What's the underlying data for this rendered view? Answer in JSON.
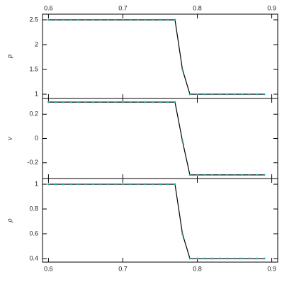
{
  "chart_data": [
    {
      "type": "line",
      "ylabel": "p",
      "xlim": [
        0.592,
        0.908
      ],
      "xticks": [
        0.6,
        0.7,
        0.8,
        0.9
      ],
      "xtick_labels_side": "top",
      "ylim": [
        0.914,
        2.614
      ],
      "yticks": [
        1,
        1.5,
        2,
        2.5
      ],
      "line_color": "#000000",
      "marker_color": "#20b2aa",
      "x": [
        0.6,
        0.61,
        0.62,
        0.63,
        0.64,
        0.65,
        0.66,
        0.67,
        0.68,
        0.69,
        0.7,
        0.71,
        0.72,
        0.73,
        0.74,
        0.75,
        0.76,
        0.77,
        0.78,
        0.79,
        0.8,
        0.81,
        0.82,
        0.83,
        0.84,
        0.85,
        0.86,
        0.87,
        0.88,
        0.89
      ],
      "values": [
        2.5,
        2.5,
        2.5,
        2.5,
        2.5,
        2.5,
        2.5,
        2.5,
        2.5,
        2.5,
        2.5,
        2.5,
        2.5,
        2.5,
        2.5,
        2.5,
        2.5,
        2.5,
        1.5,
        1,
        1,
        1,
        1,
        1,
        1,
        1,
        1,
        1,
        1,
        1
      ]
    },
    {
      "type": "line",
      "ylabel": "v",
      "xlim": [
        0.592,
        0.908
      ],
      "xticks": [
        0.6,
        0.7,
        0.8,
        0.9
      ],
      "xtick_labels_side": "none",
      "ylim": [
        -0.33,
        0.33
      ],
      "yticks": [
        -0.2,
        0,
        0.2
      ],
      "line_color": "#000000",
      "marker_color": "#20b2aa",
      "x": [
        0.6,
        0.61,
        0.62,
        0.63,
        0.64,
        0.65,
        0.66,
        0.67,
        0.68,
        0.69,
        0.7,
        0.71,
        0.72,
        0.73,
        0.74,
        0.75,
        0.76,
        0.77,
        0.78,
        0.79,
        0.8,
        0.81,
        0.82,
        0.83,
        0.84,
        0.85,
        0.86,
        0.87,
        0.88,
        0.89
      ],
      "values": [
        0.3,
        0.3,
        0.3,
        0.3,
        0.3,
        0.3,
        0.3,
        0.3,
        0.3,
        0.3,
        0.3,
        0.3,
        0.3,
        0.3,
        0.3,
        0.3,
        0.3,
        0.3,
        -0.02,
        -0.3,
        -0.3,
        -0.3,
        -0.3,
        -0.3,
        -0.3,
        -0.3,
        -0.3,
        -0.3,
        -0.3,
        -0.3
      ]
    },
    {
      "type": "line",
      "ylabel": "ρ",
      "xlim": [
        0.592,
        0.908
      ],
      "xticks": [
        0.6,
        0.7,
        0.8,
        0.9
      ],
      "xtick_labels_side": "bottom",
      "ylim": [
        0.371,
        1.046
      ],
      "yticks": [
        0.4,
        0.6,
        0.8,
        1
      ],
      "line_color": "#000000",
      "marker_color": "#20b2aa",
      "x": [
        0.6,
        0.61,
        0.62,
        0.63,
        0.64,
        0.65,
        0.66,
        0.67,
        0.68,
        0.69,
        0.7,
        0.71,
        0.72,
        0.73,
        0.74,
        0.75,
        0.76,
        0.77,
        0.78,
        0.79,
        0.8,
        0.81,
        0.82,
        0.83,
        0.84,
        0.85,
        0.86,
        0.87,
        0.88,
        0.89
      ],
      "values": [
        1,
        1,
        1,
        1,
        1,
        1,
        1,
        1,
        1,
        1,
        1,
        1,
        1,
        1,
        1,
        1,
        1,
        1,
        0.6,
        0.4,
        0.4,
        0.4,
        0.4,
        0.4,
        0.4,
        0.4,
        0.4,
        0.4,
        0.4,
        0.4
      ]
    }
  ]
}
